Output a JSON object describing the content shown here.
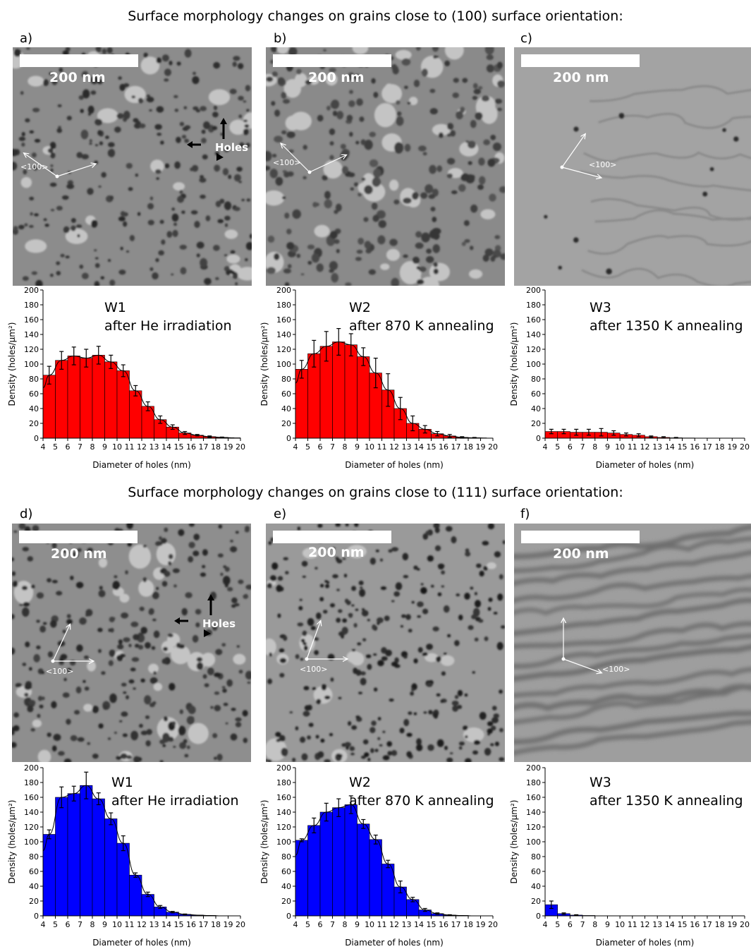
{
  "titles": {
    "top": "Surface morphology changes on grains close to (100) surface orientation:",
    "bottom": "Surface morphology changes on grains close to (111) surface orientation:"
  },
  "image_labels": {
    "scale_bar": "200 nm",
    "direction": "<100>",
    "holes": "Holes"
  },
  "colors": {
    "top_bars": "#ff0000",
    "bottom_bars": "#0000ff"
  },
  "panels": [
    {
      "letter": "a)",
      "name": "W1",
      "caption": "after He irradiation"
    },
    {
      "letter": "b)",
      "name": "W2",
      "caption": "after 870 K annealing"
    },
    {
      "letter": "c)",
      "name": "W3",
      "caption": "after 1350 K annealing"
    },
    {
      "letter": "d)",
      "name": "W1",
      "caption": "after He irradiation"
    },
    {
      "letter": "e)",
      "name": "W2",
      "caption": "after 870 K annealing"
    },
    {
      "letter": "f)",
      "name": "W3",
      "caption": "after 1350 K annealing"
    }
  ],
  "chart_data": [
    {
      "type": "bar",
      "panel": "a",
      "x": [
        4,
        5,
        6,
        7,
        8,
        9,
        10,
        11,
        12,
        13,
        14,
        15,
        16,
        17,
        18,
        19
      ],
      "values": [
        85,
        105,
        111,
        108,
        112,
        103,
        91,
        64,
        43,
        25,
        15,
        7,
        4,
        2,
        1,
        0.5
      ],
      "errors": [
        12,
        12,
        12,
        12,
        12,
        9,
        8,
        7,
        6,
        5,
        3,
        2,
        1,
        1,
        0.5,
        0.3
      ],
      "fit": true,
      "xlabel": "Diameter of holes (nm)",
      "ylabel": "Density (holes/μm²)",
      "xlim": [
        4,
        20
      ],
      "ylim": [
        0,
        200
      ],
      "xticks": [
        4,
        5,
        6,
        7,
        8,
        9,
        10,
        11,
        12,
        13,
        14,
        15,
        16,
        17,
        18,
        19,
        20
      ],
      "yticks": [
        0,
        20,
        40,
        60,
        80,
        100,
        120,
        140,
        160,
        180,
        200
      ]
    },
    {
      "type": "bar",
      "panel": "b",
      "x": [
        4,
        5,
        6,
        7,
        8,
        9,
        10,
        11,
        12,
        13,
        14,
        15,
        16,
        17,
        18,
        19
      ],
      "values": [
        93,
        114,
        124,
        130,
        126,
        110,
        88,
        65,
        40,
        20,
        12,
        6,
        3,
        1,
        0.5,
        0.2
      ],
      "errors": [
        12,
        18,
        20,
        18,
        15,
        12,
        20,
        22,
        15,
        10,
        5,
        3,
        2,
        1,
        0.5,
        0.2
      ],
      "fit": true,
      "xlabel": "Diameter of holes (nm)",
      "ylabel": "Density (holes/μm²)",
      "xlim": [
        4,
        20
      ],
      "ylim": [
        0,
        200
      ],
      "xticks": [
        4,
        5,
        6,
        7,
        8,
        9,
        10,
        11,
        12,
        13,
        14,
        15,
        16,
        17,
        18,
        19,
        20
      ],
      "yticks": [
        0,
        20,
        40,
        60,
        80,
        100,
        120,
        140,
        160,
        180,
        200
      ]
    },
    {
      "type": "bar",
      "panel": "c",
      "x": [
        4,
        5,
        6,
        7,
        8,
        9,
        10,
        11,
        12,
        13,
        14,
        15,
        16,
        17,
        18,
        19
      ],
      "values": [
        9,
        9,
        8,
        8,
        8,
        7,
        5,
        4,
        2,
        1,
        0.5,
        0.3,
        0.1,
        0,
        0,
        0
      ],
      "errors": [
        3,
        3,
        4,
        4,
        5,
        3,
        2,
        2,
        1,
        1,
        0.5,
        0.2,
        0,
        0,
        0,
        0
      ],
      "fit": false,
      "xlabel": "Diameter of holes (nm)",
      "ylabel": "Density (holes/μm²)",
      "xlim": [
        4,
        20
      ],
      "ylim": [
        0,
        200
      ],
      "xticks": [
        4,
        5,
        6,
        7,
        8,
        9,
        10,
        11,
        12,
        13,
        14,
        15,
        16,
        17,
        18,
        19,
        20
      ],
      "yticks": [
        0,
        20,
        40,
        60,
        80,
        100,
        120,
        140,
        160,
        180,
        200
      ]
    },
    {
      "type": "bar",
      "panel": "d",
      "x": [
        4,
        5,
        6,
        7,
        8,
        9,
        10,
        11,
        12,
        13,
        14,
        15,
        16,
        17,
        18,
        19
      ],
      "values": [
        110,
        160,
        165,
        176,
        158,
        131,
        98,
        55,
        29,
        12,
        5,
        2,
        1,
        0.5,
        0,
        0
      ],
      "errors": [
        6,
        14,
        10,
        18,
        8,
        8,
        10,
        3,
        3,
        2,
        1,
        0.5,
        0.3,
        0,
        0,
        0
      ],
      "fit": true,
      "xlabel": "Diameter of holes (nm)",
      "ylabel": "Density (holes/μm²)",
      "xlim": [
        4,
        20
      ],
      "ylim": [
        0,
        200
      ],
      "xticks": [
        4,
        5,
        6,
        7,
        8,
        9,
        10,
        11,
        12,
        13,
        14,
        15,
        16,
        17,
        18,
        19,
        20
      ],
      "yticks": [
        0,
        20,
        40,
        60,
        80,
        100,
        120,
        140,
        160,
        180,
        200
      ]
    },
    {
      "type": "bar",
      "panel": "e",
      "x": [
        4,
        5,
        6,
        7,
        8,
        9,
        10,
        11,
        12,
        13,
        14,
        15,
        16,
        17,
        18,
        19
      ],
      "values": [
        102,
        122,
        140,
        146,
        150,
        124,
        103,
        70,
        39,
        22,
        8,
        3,
        1,
        0.5,
        0,
        0
      ],
      "errors": [
        2,
        10,
        12,
        12,
        12,
        6,
        6,
        5,
        8,
        3,
        2,
        1,
        0.5,
        0,
        0,
        0
      ],
      "fit": true,
      "xlabel": "Diameter of holes (nm)",
      "ylabel": "Density (holes/μm²)",
      "xlim": [
        4,
        20
      ],
      "ylim": [
        0,
        200
      ],
      "xticks": [
        4,
        5,
        6,
        7,
        8,
        9,
        10,
        11,
        12,
        13,
        14,
        15,
        16,
        17,
        18,
        19,
        20
      ],
      "yticks": [
        0,
        20,
        40,
        60,
        80,
        100,
        120,
        140,
        160,
        180,
        200
      ]
    },
    {
      "type": "bar",
      "panel": "f",
      "x": [
        4,
        5,
        6,
        7,
        8,
        9,
        10,
        11,
        12,
        13,
        14,
        15,
        16,
        17,
        18,
        19
      ],
      "values": [
        15,
        3,
        1,
        0.5,
        0,
        0,
        0,
        0,
        0,
        0,
        0,
        0,
        0,
        0,
        0,
        0
      ],
      "errors": [
        5,
        1,
        0.5,
        0.2,
        0,
        0,
        0,
        0,
        0,
        0,
        0,
        0,
        0,
        0,
        0,
        0
      ],
      "fit": false,
      "xlabel": "Diameter of holes (nm)",
      "ylabel": "Density (holes/μm²)",
      "xlim": [
        4,
        20
      ],
      "ylim": [
        0,
        200
      ],
      "xticks": [
        4,
        5,
        6,
        7,
        8,
        9,
        10,
        11,
        12,
        13,
        14,
        15,
        16,
        17,
        18,
        19,
        20
      ],
      "yticks": [
        0,
        20,
        40,
        60,
        80,
        100,
        120,
        140,
        160,
        180,
        200
      ]
    }
  ]
}
